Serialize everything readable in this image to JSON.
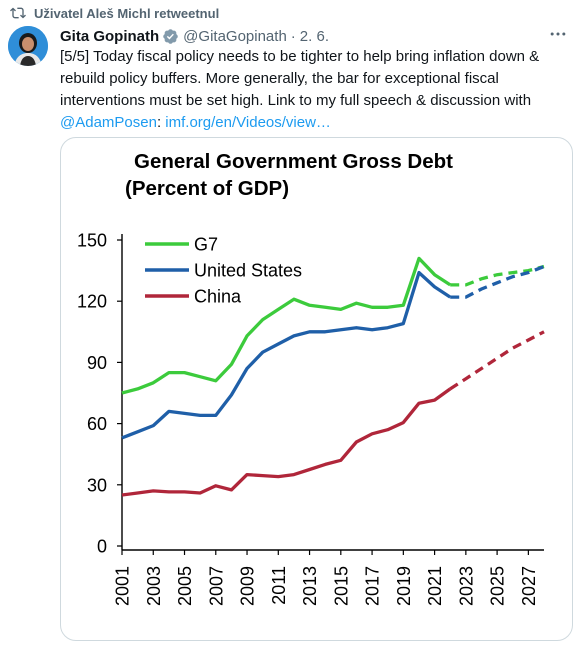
{
  "retweet": {
    "label": "Uživatel Aleš Michl retweetnul"
  },
  "tweet": {
    "author_name": "Gita Gopinath",
    "handle": "@GitaGopinath",
    "separator": "·",
    "date": "2. 6.",
    "text_part1": "[5/5] Today fiscal policy needs to be tighter to help bring inflation down & rebuild policy buffers. More generally, the bar for exceptional fiscal interventions must be set high. Link to my full speech & discussion with ",
    "mention": "@AdamPosen",
    "text_colon": ": ",
    "link": "imf.org/en/Videos/view…"
  },
  "colors": {
    "g7": "#3ccb3c",
    "us": "#1f5fa8",
    "china": "#b0263a",
    "link": "#1d9bf0",
    "verified": "#829aab"
  },
  "icons": {
    "retweet": "retweet-icon",
    "verified": "verified-badge-icon",
    "more": "more-options-icon"
  },
  "chart_data": {
    "type": "line",
    "title": "General Government Gross Debt",
    "subtitle": "(Percent of GDP)",
    "xlabel": "",
    "ylabel": "",
    "ylim": [
      0,
      150
    ],
    "yticks": [
      0,
      30,
      60,
      90,
      120,
      150
    ],
    "xticks": [
      "2001",
      "2003",
      "2005",
      "2007",
      "2009",
      "2011",
      "2013",
      "2015",
      "2017",
      "2019",
      "2021",
      "2023",
      "2025",
      "2027"
    ],
    "x": [
      2001,
      2002,
      2003,
      2004,
      2005,
      2006,
      2007,
      2008,
      2009,
      2010,
      2011,
      2012,
      2013,
      2014,
      2015,
      2016,
      2017,
      2018,
      2019,
      2020,
      2021,
      2022,
      2023,
      2024,
      2025,
      2026,
      2027,
      2028
    ],
    "projection_start": 2022,
    "legend_position": "top-left",
    "series": [
      {
        "name": "G7",
        "values": [
          75,
          77,
          80,
          85,
          85,
          83,
          81,
          89,
          103,
          111,
          116,
          121,
          118,
          117,
          116,
          119,
          117,
          117,
          118,
          141,
          133,
          128,
          128,
          131,
          133,
          134,
          135,
          137
        ]
      },
      {
        "name": "United States",
        "values": [
          53,
          56,
          59,
          66,
          65,
          64,
          64,
          74,
          87,
          95,
          99,
          103,
          105,
          105,
          106,
          107,
          106,
          107,
          109,
          134,
          127,
          122,
          122,
          126,
          129,
          132,
          134,
          137
        ]
      },
      {
        "name": "China",
        "values": [
          25,
          26,
          27,
          26.5,
          26.5,
          26,
          29.5,
          27.5,
          35,
          34.5,
          34,
          35,
          37.5,
          40,
          42,
          51,
          55,
          57,
          60.5,
          70,
          71.5,
          77,
          82,
          87,
          92,
          97,
          101,
          105
        ]
      }
    ]
  }
}
